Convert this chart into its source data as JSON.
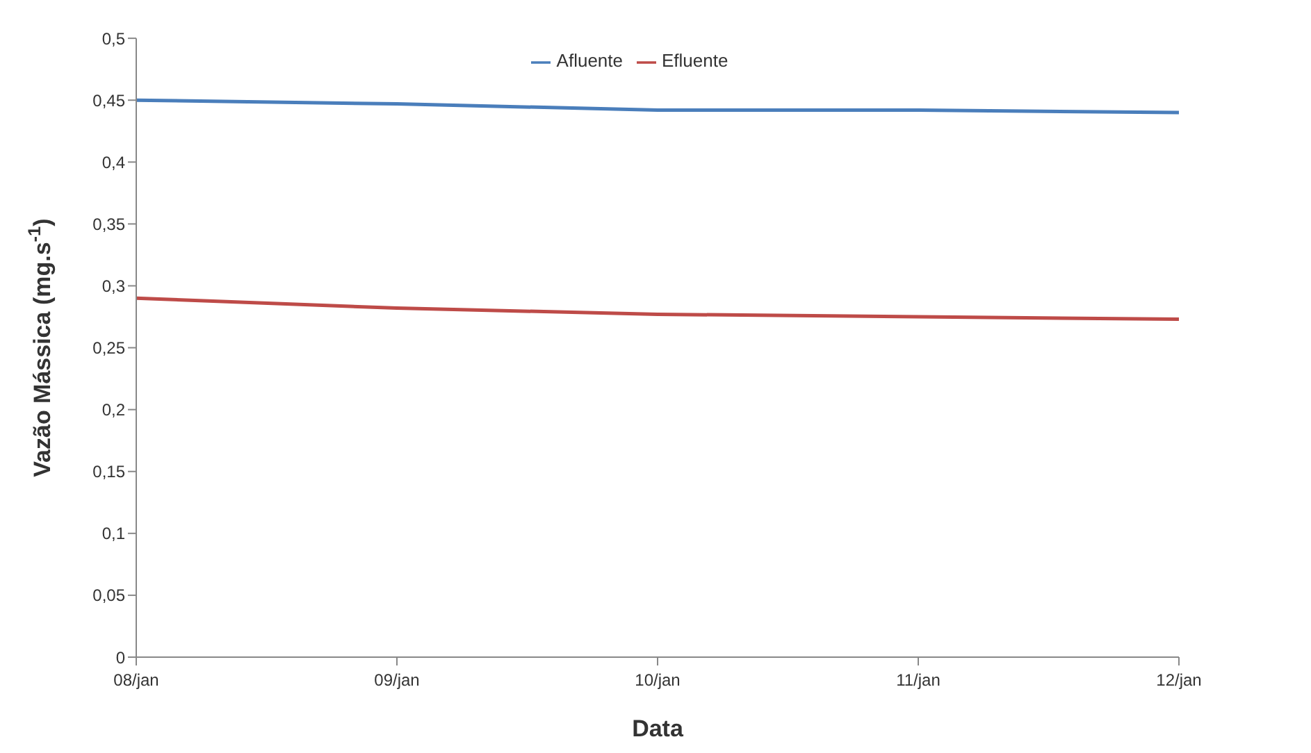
{
  "chart_data": {
    "type": "line",
    "xlabel": "Data",
    "ylabel": "Vazão Mássica (mg.s$^{-1}$)",
    "categories": [
      "08/jan",
      "09/jan",
      "10/jan",
      "11/jan",
      "12/jan"
    ],
    "series": [
      {
        "name": "Afluente",
        "color": "#4a7ebb",
        "values": [
          0.45,
          0.447,
          0.442,
          0.442,
          0.44
        ]
      },
      {
        "name": "Efluente",
        "color": "#be4b48",
        "values": [
          0.29,
          0.282,
          0.277,
          0.275,
          0.273
        ]
      }
    ],
    "ylim": [
      0,
      0.5
    ],
    "yticks": [
      {
        "value": 0,
        "label": "0"
      },
      {
        "value": 0.05,
        "label": "0,05"
      },
      {
        "value": 0.1,
        "label": "0,1"
      },
      {
        "value": 0.15,
        "label": "0,15"
      },
      {
        "value": 0.2,
        "label": "0,2"
      },
      {
        "value": 0.25,
        "label": "0,25"
      },
      {
        "value": 0.3,
        "label": "0,3"
      },
      {
        "value": 0.35,
        "label": "0,35"
      },
      {
        "value": 0.4,
        "label": "0,4"
      },
      {
        "value": 0.45,
        "label": "0,45"
      },
      {
        "value": 0.5,
        "label": "0,5"
      }
    ],
    "grid": false,
    "legend": "top",
    "marker": "none",
    "line_style": "solid"
  }
}
